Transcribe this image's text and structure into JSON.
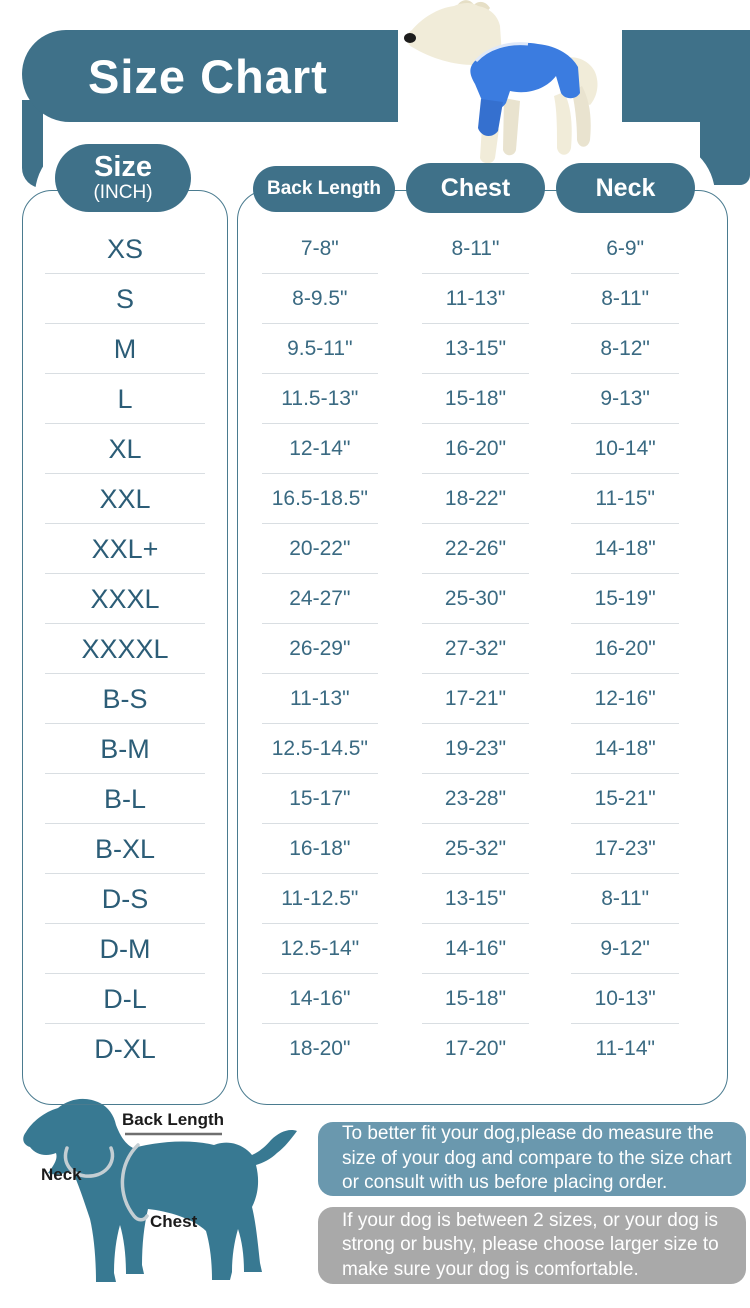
{
  "title": "Size Chart",
  "table": {
    "size_header": {
      "label": "Size",
      "unit": "(INCH)"
    },
    "columns": [
      "Back Length",
      "Chest",
      "Neck"
    ]
  },
  "chart_data": {
    "type": "table",
    "title": "Size Chart",
    "unit": "INCH",
    "columns": [
      "Size",
      "Back Length",
      "Chest",
      "Neck"
    ],
    "rows": [
      [
        "XS",
        "7-8\"",
        "8-11\"",
        "6-9\""
      ],
      [
        "S",
        "8-9.5\"",
        "11-13\"",
        "8-11\""
      ],
      [
        "M",
        "9.5-11\"",
        "13-15\"",
        "8-12\""
      ],
      [
        "L",
        "11.5-13\"",
        "15-18\"",
        "9-13\""
      ],
      [
        "XL",
        "12-14\"",
        "16-20\"",
        "10-14\""
      ],
      [
        "XXL",
        "16.5-18.5\"",
        "18-22\"",
        "11-15\""
      ],
      [
        "XXL+",
        "20-22\"",
        "22-26\"",
        "14-18\""
      ],
      [
        "XXXL",
        "24-27\"",
        "25-30\"",
        "15-19\""
      ],
      [
        "XXXXL",
        "26-29\"",
        "27-32\"",
        "16-20\""
      ],
      [
        "B-S",
        "11-13\"",
        "17-21\"",
        "12-16\""
      ],
      [
        "B-M",
        "12.5-14.5\"",
        "19-23\"",
        "14-18\""
      ],
      [
        "B-L",
        "15-17\"",
        "23-28\"",
        "15-21\""
      ],
      [
        "B-XL",
        "16-18\"",
        "25-32\"",
        "17-23\""
      ],
      [
        "D-S",
        "11-12.5\"",
        "13-15\"",
        "8-11\""
      ],
      [
        "D-M",
        "12.5-14\"",
        "14-16\"",
        "9-12\""
      ],
      [
        "D-L",
        "14-16\"",
        "15-18\"",
        "10-13\""
      ],
      [
        "D-XL",
        "18-20\"",
        "17-20\"",
        "11-14\""
      ]
    ]
  },
  "diagram": {
    "back_length": "Back Length",
    "neck": "Neck",
    "chest": "Chest"
  },
  "notes": {
    "measure": "To better fit your dog,please do measure the size of your dog and compare to the size chart or consult with us before placing order.",
    "between_sizes": "If your dog is between 2 sizes, or your dog is strong or bushy, please choose larger size to make sure your dog is comfortable."
  },
  "colors": {
    "teal": "#3f7189",
    "dark_text": "#2c5d77",
    "value_text": "#3a6a82",
    "separator": "#d9dee2",
    "silhouette": "#387992",
    "note1_bg": "#6a98ae",
    "note2_bg": "#a9a9a9",
    "shirt_blue": "#3b7ce0",
    "mannequin_cream": "#f1ecd9"
  }
}
